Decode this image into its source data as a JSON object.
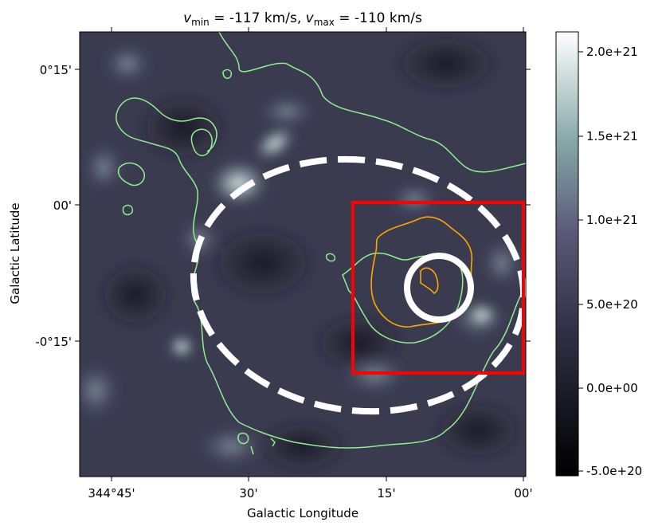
{
  "title": {
    "vmin_symbol": "v",
    "vmin_sub": "min",
    "vmin_value": " = -117 km/s, ",
    "vmax_symbol": "v",
    "vmax_sub": "max",
    "vmax_value": " = -110 km/s"
  },
  "axes": {
    "xlabel": "Galactic Longitude",
    "ylabel": "Galactic Latitude",
    "x_ticks": [
      "344°45'",
      "30'",
      "15'",
      "00'"
    ],
    "y_ticks": [
      "0°15'",
      "00'",
      "-0°15'"
    ]
  },
  "colorbar": {
    "ticks": [
      "2.0e+21",
      "1.5e+21",
      "1.0e+21",
      "5.0e+20",
      "0.0e+00",
      "-5.0e+20"
    ],
    "range": [
      -5e+20,
      2.1e+21
    ],
    "colormap": "bone",
    "colors": {
      "low": "#000000",
      "mid": "#4f4f6e",
      "high_mid": "#95bcbc",
      "high": "#ffffff"
    }
  },
  "overlays": {
    "dashed_ellipse_color": "#ffffff",
    "small_circle_color": "#ffffff",
    "box_color": "#ff0000",
    "outer_contour_color": "#90ee90",
    "inner_contour_color": "#ffa500"
  }
}
